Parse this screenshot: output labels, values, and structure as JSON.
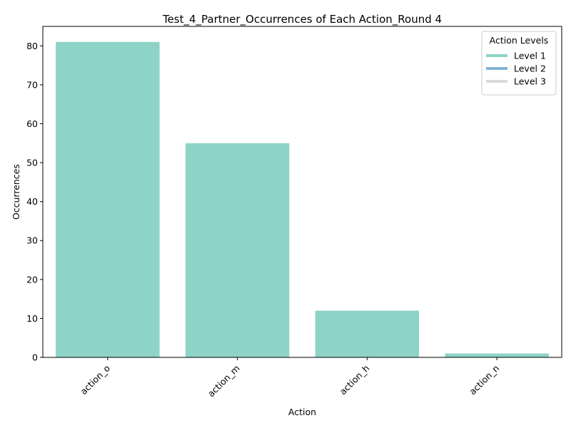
{
  "chart_data": {
    "type": "bar",
    "title": "Test_4_Partner_Occurrences of Each Action_Round 4",
    "xlabel": "Action",
    "ylabel": "Occurrences",
    "categories": [
      "action_o",
      "action_m",
      "action_h",
      "action_n"
    ],
    "values": [
      81,
      55,
      12,
      1
    ],
    "bar_color": "#8dd3c7",
    "ylim": [
      0,
      85
    ],
    "yticks": [
      0,
      10,
      20,
      30,
      40,
      50,
      60,
      70,
      80
    ],
    "grid": false,
    "legend": {
      "title": "Action Levels",
      "placement": "top-right",
      "entries": [
        {
          "label": "Level 1",
          "color": "#8dd3c7"
        },
        {
          "label": "Level 2",
          "color": "#80b1d3"
        },
        {
          "label": "Level 3",
          "color": "#d9d9d9"
        }
      ]
    }
  }
}
